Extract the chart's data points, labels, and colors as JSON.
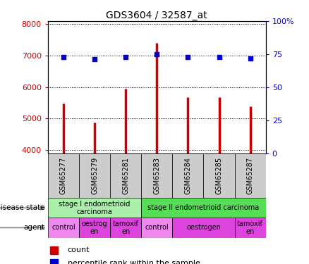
{
  "title": "GDS3604 / 32587_at",
  "samples": [
    "GSM65277",
    "GSM65279",
    "GSM65281",
    "GSM65283",
    "GSM65284",
    "GSM65285",
    "GSM65287"
  ],
  "counts": [
    5480,
    4880,
    5950,
    7400,
    5670,
    5670,
    5380
  ],
  "percentiles": [
    73,
    71,
    73,
    75,
    73,
    73,
    72
  ],
  "ylim_left": [
    3900,
    8100
  ],
  "ylim_right": [
    0,
    100
  ],
  "yticks_left": [
    4000,
    5000,
    6000,
    7000,
    8000
  ],
  "yticks_right": [
    0,
    25,
    50,
    75,
    100
  ],
  "bar_color": "#cc0000",
  "dot_color": "#0000cc",
  "bar_bottom": 3900,
  "disease_state_groups": [
    {
      "label": "stage I endometrioid\ncarcinoma",
      "start": 0,
      "end": 3,
      "color": "#aaf0aa"
    },
    {
      "label": "stage II endometrioid carcinoma",
      "start": 3,
      "end": 7,
      "color": "#55dd55"
    }
  ],
  "agent_groups": [
    {
      "label": "control",
      "start": 0,
      "end": 1,
      "color": "#ee88ee"
    },
    {
      "label": "oestrog\nen",
      "start": 1,
      "end": 2,
      "color": "#dd44dd"
    },
    {
      "label": "tamoxif\nen",
      "start": 2,
      "end": 3,
      "color": "#dd44dd"
    },
    {
      "label": "control",
      "start": 3,
      "end": 4,
      "color": "#ee88ee"
    },
    {
      "label": "oestrogen",
      "start": 4,
      "end": 6,
      "color": "#dd44dd"
    },
    {
      "label": "tamoxif\nen",
      "start": 6,
      "end": 7,
      "color": "#dd44dd"
    }
  ],
  "background_color": "#ffffff",
  "label_bg_color": "#cccccc",
  "grid_linestyle": ":",
  "grid_color": "#000000"
}
